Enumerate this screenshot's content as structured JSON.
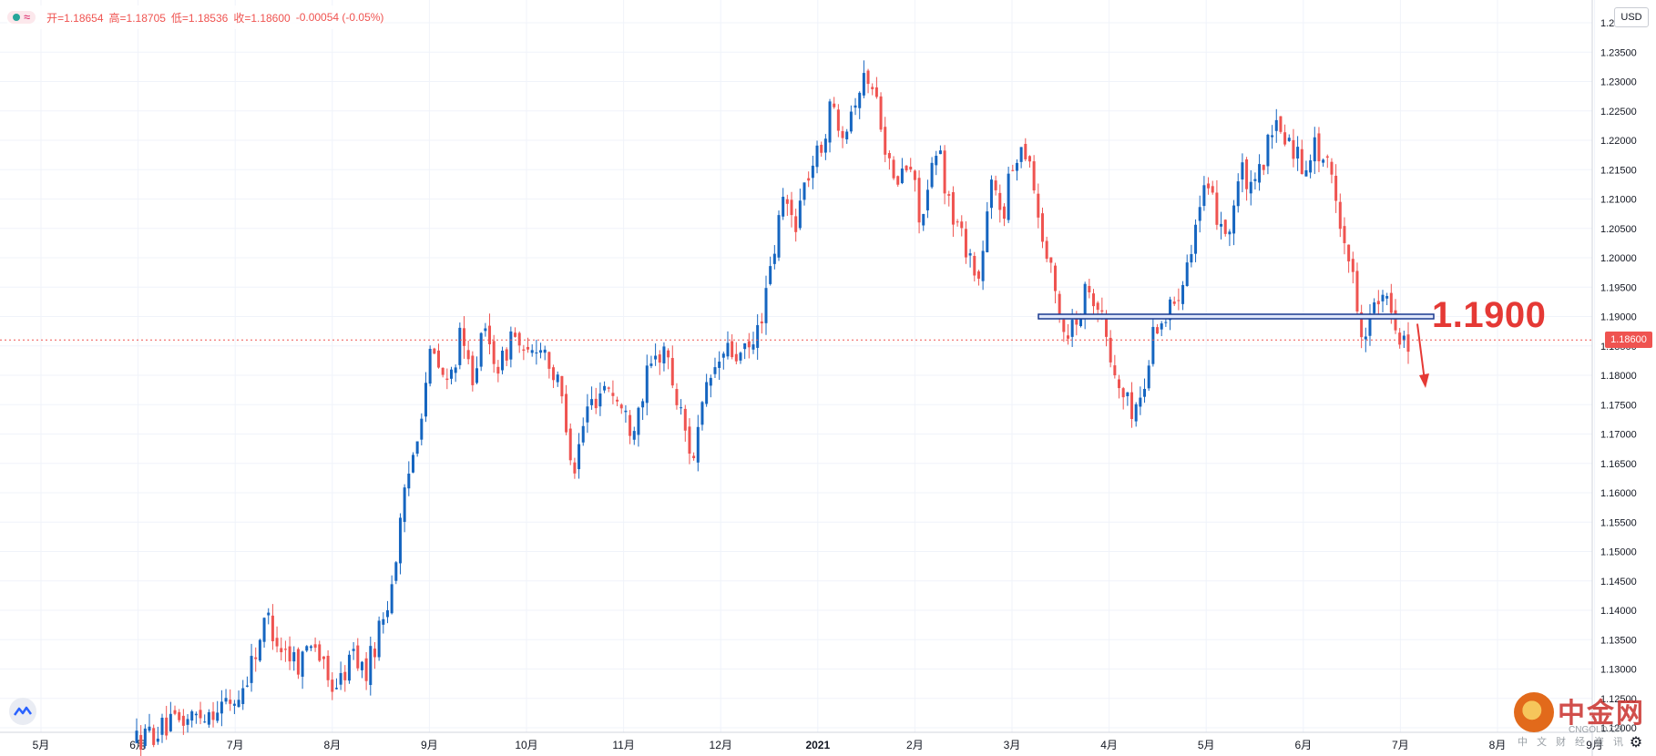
{
  "header": {
    "ohlc": {
      "open": "开=1.18654",
      "high": "高=1.18705",
      "low": "低=1.18536",
      "close": "收=1.18600",
      "change": "-0.00054 (-0.05%)"
    }
  },
  "currency_label": "USD",
  "last_price_label": "1.18600",
  "annotation_text": "1.1900",
  "watermark": {
    "title": "中金网",
    "subtitle": "CNGOLD.CN",
    "subtitle2": "中文财经资讯"
  },
  "colors": {
    "up": "#1565c0",
    "down": "#ef5350",
    "annotation": "#e53935",
    "zone": "#1a3a8f"
  },
  "icons": {
    "logo": "tradingview-logo-icon",
    "settings": "gear-icon"
  },
  "chart_data": {
    "type": "candlestick",
    "title": "",
    "xlabel": "",
    "ylabel": "",
    "ylim": [
      1.12,
      1.24
    ],
    "grid": true,
    "x_ticks": [
      "5月",
      "6月",
      "7月",
      "8月",
      "9月",
      "10月",
      "11月",
      "12月",
      "2021",
      "2月",
      "3月",
      "4月",
      "5月",
      "6月",
      "7月",
      "8月",
      "9月"
    ],
    "y_ticks": [
      "1.24000",
      "1.23500",
      "1.23000",
      "1.22500",
      "1.22000",
      "1.21500",
      "1.21000",
      "1.20500",
      "1.20000",
      "1.19500",
      "1.19000",
      "1.18500",
      "1.18000",
      "1.17500",
      "1.17000",
      "1.16500",
      "1.16000",
      "1.15500",
      "1.15000",
      "1.14500",
      "1.14000",
      "1.13500",
      "1.13000",
      "1.12500",
      "1.12000"
    ],
    "last_price": 1.186,
    "reference_level": 1.19,
    "path_anchors": [
      [
        0.0,
        1.118
      ],
      [
        2.5,
        1.125
      ],
      [
        3.2,
        1.139
      ],
      [
        3.5,
        1.134
      ],
      [
        4.0,
        1.131
      ],
      [
        4.3,
        1.136
      ],
      [
        4.7,
        1.127
      ],
      [
        5.0,
        1.128
      ],
      [
        5.3,
        1.133
      ],
      [
        5.6,
        1.129
      ],
      [
        6.2,
        1.143
      ],
      [
        6.6,
        1.161
      ],
      [
        6.9,
        1.172
      ],
      [
        7.2,
        1.184
      ],
      [
        7.6,
        1.178
      ],
      [
        7.9,
        1.186
      ],
      [
        8.2,
        1.18
      ],
      [
        8.5,
        1.187
      ],
      [
        8.9,
        1.181
      ],
      [
        9.2,
        1.188
      ],
      [
        9.5,
        1.182
      ],
      [
        9.9,
        1.186
      ],
      [
        10.4,
        1.176
      ],
      [
        10.7,
        1.164
      ],
      [
        11.0,
        1.174
      ],
      [
        11.5,
        1.179
      ],
      [
        11.8,
        1.175
      ],
      [
        12.1,
        1.171
      ],
      [
        12.5,
        1.18
      ],
      [
        12.9,
        1.185
      ],
      [
        13.2,
        1.176
      ],
      [
        13.6,
        1.166
      ],
      [
        14.0,
        1.179
      ],
      [
        14.4,
        1.184
      ],
      [
        14.8,
        1.183
      ],
      [
        15.1,
        1.185
      ],
      [
        15.5,
        1.197
      ],
      [
        15.8,
        1.21
      ],
      [
        16.1,
        1.206
      ],
      [
        16.4,
        1.214
      ],
      [
        16.7,
        1.218
      ],
      [
        17.0,
        1.226
      ],
      [
        17.3,
        1.222
      ],
      [
        17.6,
        1.228
      ],
      [
        17.9,
        1.231
      ],
      [
        18.2,
        1.224
      ],
      [
        18.5,
        1.212
      ],
      [
        18.9,
        1.216
      ],
      [
        19.2,
        1.206
      ],
      [
        19.6,
        1.219
      ],
      [
        19.9,
        1.208
      ],
      [
        20.3,
        1.202
      ],
      [
        20.6,
        1.196
      ],
      [
        20.9,
        1.212
      ],
      [
        21.2,
        1.208
      ],
      [
        21.5,
        1.218
      ],
      [
        21.8,
        1.219
      ],
      [
        22.1,
        1.205
      ],
      [
        22.4,
        1.196
      ],
      [
        22.7,
        1.187
      ],
      [
        23.0,
        1.19
      ],
      [
        23.3,
        1.196
      ],
      [
        23.6,
        1.19
      ],
      [
        23.9,
        1.18
      ],
      [
        24.3,
        1.174
      ],
      [
        24.6,
        1.176
      ],
      [
        24.9,
        1.189
      ],
      [
        25.2,
        1.19
      ],
      [
        25.5,
        1.195
      ],
      [
        25.8,
        1.203
      ],
      [
        26.1,
        1.211
      ],
      [
        26.4,
        1.208
      ],
      [
        26.7,
        1.204
      ],
      [
        27.0,
        1.215
      ],
      [
        27.3,
        1.21
      ],
      [
        27.6,
        1.218
      ],
      [
        27.9,
        1.222
      ],
      [
        28.2,
        1.22
      ],
      [
        28.5,
        1.216
      ],
      [
        28.8,
        1.219
      ],
      [
        29.1,
        1.216
      ],
      [
        29.4,
        1.208
      ],
      [
        29.7,
        1.198
      ],
      [
        30.0,
        1.187
      ],
      [
        30.3,
        1.192
      ],
      [
        30.6,
        1.192
      ],
      [
        30.9,
        1.187
      ],
      [
        31.1,
        1.186
      ]
    ]
  }
}
